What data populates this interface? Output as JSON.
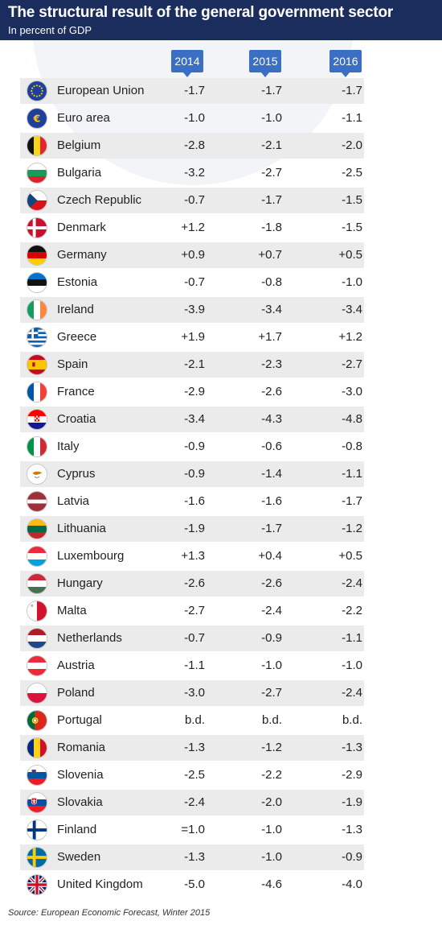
{
  "title": "The structural result of the general government sector",
  "subtitle": "In percent of GDP",
  "source": "Source: European Economic Forecast, Winter 2015",
  "chart_data": {
    "type": "table",
    "title": "The structural result of the general government sector",
    "subtitle": "In percent of GDP",
    "columns": [
      "2014",
      "2015",
      "2016"
    ],
    "rows": [
      {
        "name": "European Union",
        "flag": "eu-flag-icon",
        "values": [
          "-1.7",
          "-1.7",
          "-1.7"
        ]
      },
      {
        "name": "Euro area",
        "flag": "euro-icon",
        "values": [
          "-1.0",
          "-1.0",
          "-1.1"
        ]
      },
      {
        "name": "Belgium",
        "flag": "belgium-flag-icon",
        "values": [
          "-2.8",
          "-2.1",
          "-2.0"
        ]
      },
      {
        "name": "Bulgaria",
        "flag": "bulgaria-flag-icon",
        "values": [
          "-3.2",
          "-2.7",
          "-2.5"
        ]
      },
      {
        "name": "Czech Republic",
        "flag": "czech-flag-icon",
        "values": [
          "-0.7",
          "-1.7",
          "-1.5"
        ]
      },
      {
        "name": "Denmark",
        "flag": "denmark-flag-icon",
        "values": [
          "+1.2",
          "-1.8",
          "-1.5"
        ]
      },
      {
        "name": "Germany",
        "flag": "germany-flag-icon",
        "values": [
          "+0.9",
          "+0.7",
          "+0.5"
        ]
      },
      {
        "name": "Estonia",
        "flag": "estonia-flag-icon",
        "values": [
          "-0.7",
          "-0.8",
          "-1.0"
        ]
      },
      {
        "name": "Ireland",
        "flag": "ireland-flag-icon",
        "values": [
          "-3.9",
          "-3.4",
          "-3.4"
        ]
      },
      {
        "name": "Greece",
        "flag": "greece-flag-icon",
        "values": [
          "+1.9",
          "+1.7",
          "+1.2"
        ]
      },
      {
        "name": "Spain",
        "flag": "spain-flag-icon",
        "values": [
          "-2.1",
          "-2.3",
          "-2.7"
        ]
      },
      {
        "name": "France",
        "flag": "france-flag-icon",
        "values": [
          "-2.9",
          "-2.6",
          "-3.0"
        ]
      },
      {
        "name": "Croatia",
        "flag": "croatia-flag-icon",
        "values": [
          "-3.4",
          "-4.3",
          "-4.8"
        ]
      },
      {
        "name": "Italy",
        "flag": "italy-flag-icon",
        "values": [
          "-0.9",
          "-0.6",
          "-0.8"
        ]
      },
      {
        "name": "Cyprus",
        "flag": "cyprus-flag-icon",
        "values": [
          "-0.9",
          "-1.4",
          "-1.1"
        ]
      },
      {
        "name": "Latvia",
        "flag": "latvia-flag-icon",
        "values": [
          "-1.6",
          "-1.6",
          "-1.7"
        ]
      },
      {
        "name": "Lithuania",
        "flag": "lithuania-flag-icon",
        "values": [
          "-1.9",
          "-1.7",
          "-1.2"
        ]
      },
      {
        "name": "Luxembourg",
        "flag": "luxembourg-flag-icon",
        "values": [
          "+1.3",
          "+0.4",
          "+0.5"
        ]
      },
      {
        "name": "Hungary",
        "flag": "hungary-flag-icon",
        "values": [
          "-2.6",
          "-2.6",
          "-2.4"
        ]
      },
      {
        "name": "Malta",
        "flag": "malta-flag-icon",
        "values": [
          "-2.7",
          "-2.4",
          "-2.2"
        ]
      },
      {
        "name": "Netherlands",
        "flag": "netherlands-flag-icon",
        "values": [
          "-0.7",
          "-0.9",
          "-1.1"
        ]
      },
      {
        "name": "Austria",
        "flag": "austria-flag-icon",
        "values": [
          "-1.1",
          "-1.0",
          "-1.0"
        ]
      },
      {
        "name": "Poland",
        "flag": "poland-flag-icon",
        "values": [
          "-3.0",
          "-2.7",
          "-2.4"
        ]
      },
      {
        "name": "Portugal",
        "flag": "portugal-flag-icon",
        "values": [
          "b.d.",
          "b.d.",
          "b.d."
        ]
      },
      {
        "name": "Romania",
        "flag": "romania-flag-icon",
        "values": [
          "-1.3",
          "-1.2",
          "-1.3"
        ]
      },
      {
        "name": "Slovenia",
        "flag": "slovenia-flag-icon",
        "values": [
          "-2.5",
          "-2.2",
          "-2.9"
        ]
      },
      {
        "name": "Slovakia",
        "flag": "slovakia-flag-icon",
        "values": [
          "-2.4",
          "-2.0",
          "-1.9"
        ]
      },
      {
        "name": "Finland",
        "flag": "finland-flag-icon",
        "values": [
          "=1.0",
          "-1.0",
          "-1.3"
        ]
      },
      {
        "name": "Sweden",
        "flag": "sweden-flag-icon",
        "values": [
          "-1.3",
          "-1.0",
          "-0.9"
        ]
      },
      {
        "name": "United Kingdom",
        "flag": "uk-flag-icon",
        "values": [
          "-5.0",
          "-4.6",
          "-4.0"
        ]
      }
    ]
  },
  "colors": {
    "header_bg": "#1a2d5c",
    "year_badge": "#3b6fc4",
    "row_shade": "#ebebeb"
  }
}
